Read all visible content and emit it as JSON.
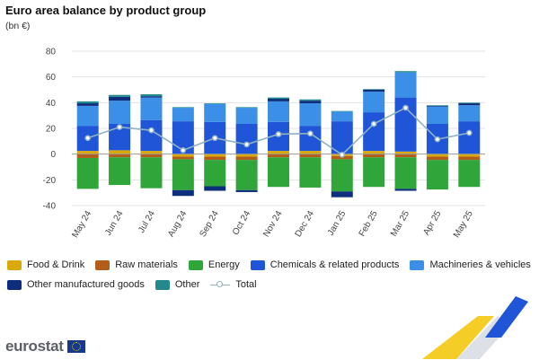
{
  "title": "Euro area balance by product group",
  "subtitle": "(bn €)",
  "brand": "eurostat",
  "chart_data": {
    "type": "bar",
    "stacked": true,
    "categories": [
      "May 24",
      "Jun 24",
      "Jul 24",
      "Aug 24",
      "Sep 24",
      "Oct 24",
      "Nov 24",
      "Dec 24",
      "Jan 25",
      "Feb 25",
      "Mar 25",
      "Apr 25",
      "May 25"
    ],
    "ylim": [
      -40,
      80
    ],
    "yticks": [
      -40,
      -20,
      0,
      20,
      40,
      60,
      80
    ],
    "grid": true,
    "legend_position": "bottom",
    "series": [
      {
        "name": "Food & Drink",
        "color": "#d9a90a",
        "values": [
          2.5,
          3,
          2.5,
          -2,
          -2,
          -2,
          2.5,
          2.5,
          -1.5,
          2.5,
          2,
          -2,
          -2
        ]
      },
      {
        "name": "Raw materials",
        "color": "#b45d1a",
        "values": [
          -3,
          -2.5,
          -2.5,
          -2,
          -2.5,
          -2.5,
          -2.5,
          -2.5,
          -2.5,
          -2.5,
          -2.5,
          -2.5,
          -2.5
        ]
      },
      {
        "name": "Energy",
        "color": "#2fa53a",
        "values": [
          -24,
          -21.5,
          -24,
          -24,
          -20.5,
          -23.5,
          -23,
          -23.5,
          -25,
          -23,
          -24.5,
          -23,
          -21
        ]
      },
      {
        "name": "Chemicals & related products",
        "color": "#1f55d6",
        "values": [
          19.5,
          20.5,
          24,
          25.5,
          25,
          23.5,
          22.5,
          19.5,
          25.5,
          30,
          42,
          23.5,
          25.5
        ]
      },
      {
        "name": "Machineries & vehicles",
        "color": "#3b8fe6",
        "values": [
          15.5,
          18,
          17.5,
          10.5,
          14,
          12.5,
          16,
          17.5,
          7.5,
          16,
          19.5,
          13.5,
          12.5
        ]
      },
      {
        "name": "Other manufactured goods",
        "color": "#0c2e7c",
        "values": [
          2,
          3,
          1,
          -4.5,
          -3.5,
          -1.5,
          2,
          2,
          -4.5,
          1.5,
          -1.5,
          0.5,
          1.5
        ]
      },
      {
        "name": "Other",
        "color": "#23898f",
        "values": [
          1.5,
          1.5,
          1.5,
          0.5,
          0.5,
          0.5,
          1,
          1,
          0.5,
          0.5,
          1,
          0.5,
          0.5
        ]
      }
    ],
    "total": {
      "name": "Total",
      "color": "#8fb3c4",
      "values": [
        12.5,
        21,
        18.5,
        3,
        12.5,
        7.5,
        15.5,
        16,
        -0.5,
        23.5,
        36,
        11.5,
        16.5
      ]
    }
  }
}
